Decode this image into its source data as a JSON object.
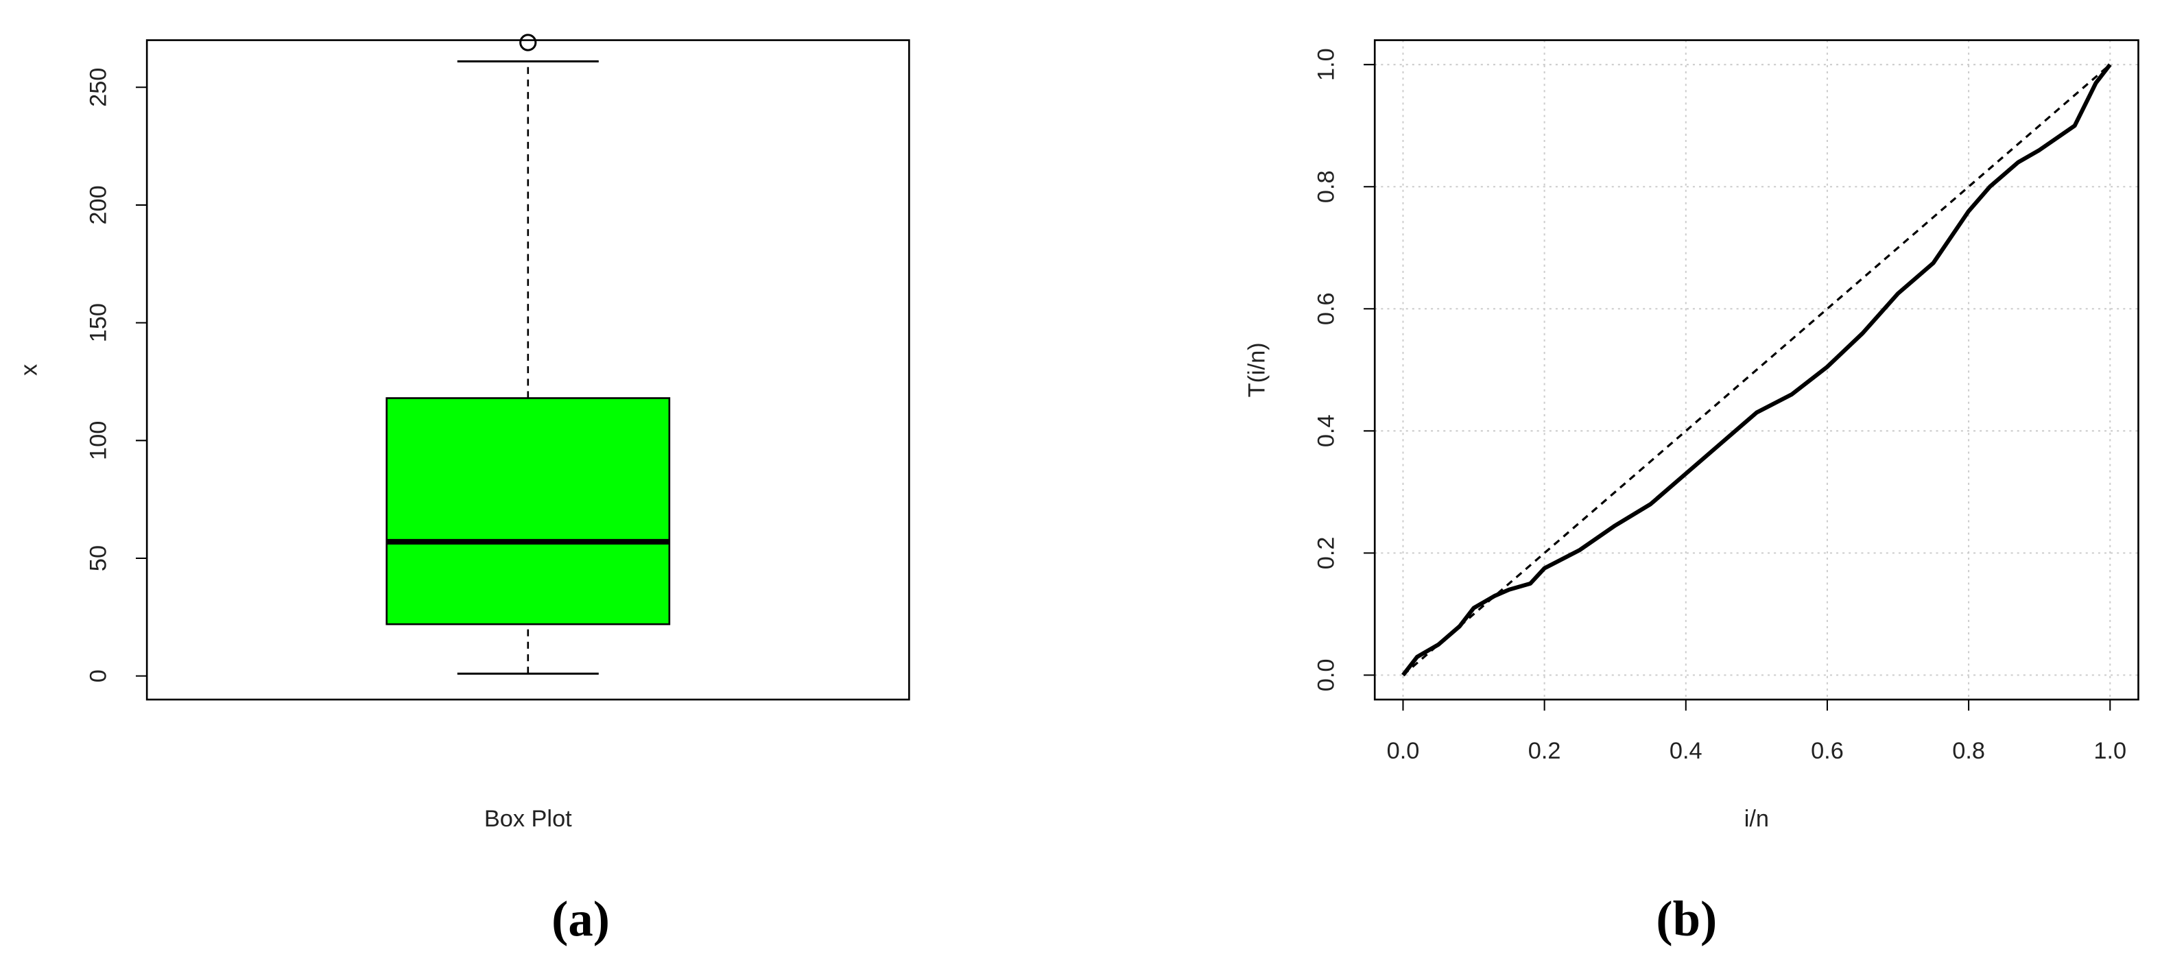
{
  "chart_data": [
    {
      "type": "box",
      "x_label": "Box Plot",
      "y_label": "x",
      "caption": "(a)",
      "boxes": [
        {
          "min": 1,
          "q1": 22,
          "median": 57,
          "q3": 118,
          "max": 261,
          "outliers": [
            269
          ]
        }
      ],
      "color": "#00ff00",
      "ylim": [
        -10,
        270
      ],
      "yticks": [
        0,
        50,
        100,
        150,
        200,
        250
      ]
    },
    {
      "type": "line",
      "x_label": "i/n",
      "y_label": "T(i/n)",
      "caption": "(b)",
      "lines": [
        {
          "style": "solid",
          "color": "#000000",
          "x": [
            0,
            0.02,
            0.05,
            0.08,
            0.1,
            0.13,
            0.15,
            0.18,
            0.2,
            0.25,
            0.3,
            0.35,
            0.4,
            0.45,
            0.5,
            0.55,
            0.6,
            0.65,
            0.7,
            0.75,
            0.8,
            0.83,
            0.87,
            0.9,
            0.95,
            0.98,
            1
          ],
          "values": [
            0,
            0.03,
            0.05,
            0.08,
            0.11,
            0.13,
            0.14,
            0.15,
            0.175,
            0.205,
            0.245,
            0.28,
            0.33,
            0.38,
            0.43,
            0.46,
            0.505,
            0.56,
            0.625,
            0.675,
            0.76,
            0.8,
            0.84,
            0.86,
            0.9,
            0.97,
            1
          ]
        },
        {
          "style": "dashed",
          "color": "#000000",
          "x": [
            0,
            1
          ],
          "values": [
            0,
            1
          ]
        }
      ],
      "xlim": [
        -0.04,
        1.04
      ],
      "ylim": [
        -0.04,
        1.04
      ],
      "grid": true,
      "xticks": [
        {
          "value": 0,
          "label": "0.0"
        },
        0.2,
        0.4,
        0.6,
        0.8,
        {
          "value": 1,
          "label": "1.0"
        }
      ],
      "yticks": [
        {
          "value": 0,
          "label": "0.0"
        },
        0.2,
        0.4,
        0.6,
        0.8,
        {
          "value": 1,
          "label": "1.0"
        }
      ]
    }
  ]
}
